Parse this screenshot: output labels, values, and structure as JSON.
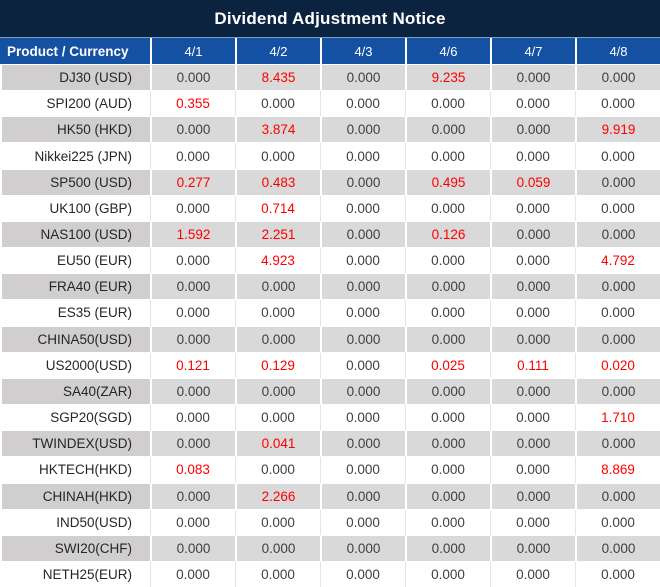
{
  "title": "Dividend Adjustment Notice",
  "header": {
    "product_label": "Product / Currency",
    "dates": [
      "4/1",
      "4/2",
      "4/3",
      "4/6",
      "4/7",
      "4/8"
    ]
  },
  "rows": [
    {
      "product": "DJ30 (USD)",
      "values": [
        "0.000",
        "8.435",
        "0.000",
        "9.235",
        "0.000",
        "0.000"
      ]
    },
    {
      "product": "SPI200 (AUD)",
      "values": [
        "0.355",
        "0.000",
        "0.000",
        "0.000",
        "0.000",
        "0.000"
      ]
    },
    {
      "product": "HK50 (HKD)",
      "values": [
        "0.000",
        "3.874",
        "0.000",
        "0.000",
        "0.000",
        "9.919"
      ]
    },
    {
      "product": "Nikkei225 (JPN)",
      "values": [
        "0.000",
        "0.000",
        "0.000",
        "0.000",
        "0.000",
        "0.000"
      ]
    },
    {
      "product": "SP500 (USD)",
      "values": [
        "0.277",
        "0.483",
        "0.000",
        "0.495",
        "0.059",
        "0.000"
      ]
    },
    {
      "product": "UK100 (GBP)",
      "values": [
        "0.000",
        "0.714",
        "0.000",
        "0.000",
        "0.000",
        "0.000"
      ]
    },
    {
      "product": "NAS100 (USD)",
      "values": [
        "1.592",
        "2.251",
        "0.000",
        "0.126",
        "0.000",
        "0.000"
      ]
    },
    {
      "product": "EU50 (EUR)",
      "values": [
        "0.000",
        "4.923",
        "0.000",
        "0.000",
        "0.000",
        "4.792"
      ]
    },
    {
      "product": "FRA40 (EUR)",
      "values": [
        "0.000",
        "0.000",
        "0.000",
        "0.000",
        "0.000",
        "0.000"
      ]
    },
    {
      "product": "ES35 (EUR)",
      "values": [
        "0.000",
        "0.000",
        "0.000",
        "0.000",
        "0.000",
        "0.000"
      ]
    },
    {
      "product": "CHINA50(USD)",
      "values": [
        "0.000",
        "0.000",
        "0.000",
        "0.000",
        "0.000",
        "0.000"
      ]
    },
    {
      "product": "US2000(USD)",
      "values": [
        "0.121",
        "0.129",
        "0.000",
        "0.025",
        "0.111",
        "0.020"
      ]
    },
    {
      "product": "SA40(ZAR)",
      "values": [
        "0.000",
        "0.000",
        "0.000",
        "0.000",
        "0.000",
        "0.000"
      ]
    },
    {
      "product": "SGP20(SGD)",
      "values": [
        "0.000",
        "0.000",
        "0.000",
        "0.000",
        "0.000",
        "1.710"
      ]
    },
    {
      "product": "TWINDEX(USD)",
      "values": [
        "0.000",
        "0.041",
        "0.000",
        "0.000",
        "0.000",
        "0.000"
      ]
    },
    {
      "product": "HKTECH(HKD)",
      "values": [
        "0.083",
        "0.000",
        "0.000",
        "0.000",
        "0.000",
        "8.869"
      ]
    },
    {
      "product": "CHINAH(HKD)",
      "values": [
        "0.000",
        "2.266",
        "0.000",
        "0.000",
        "0.000",
        "0.000"
      ]
    },
    {
      "product": "IND50(USD)",
      "values": [
        "0.000",
        "0.000",
        "0.000",
        "0.000",
        "0.000",
        "0.000"
      ]
    },
    {
      "product": "SWI20(CHF)",
      "values": [
        "0.000",
        "0.000",
        "0.000",
        "0.000",
        "0.000",
        "0.000"
      ]
    },
    {
      "product": "NETH25(EUR)",
      "values": [
        "0.000",
        "0.000",
        "0.000",
        "0.000",
        "0.000",
        "0.000"
      ]
    }
  ],
  "colors": {
    "title_bg": "#0C2340",
    "header_bg": "#1451A3",
    "row_alt_bg": "#D9D9D9",
    "product_alt_bg": "#D0CECE",
    "highlight_value": "#FF0000",
    "zero_value": "#3F3F3F"
  }
}
